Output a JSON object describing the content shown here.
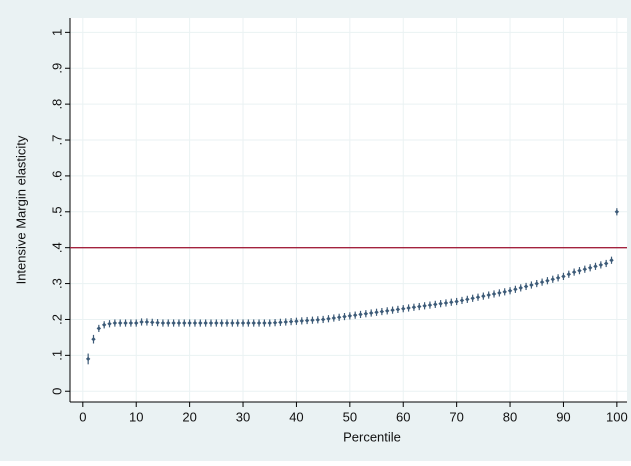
{
  "chart_data": {
    "type": "errorbar",
    "xlabel": "Percentile",
    "ylabel": "Intensive Margin elasticity",
    "x": [
      1,
      2,
      3,
      4,
      5,
      6,
      7,
      8,
      9,
      10,
      11,
      12,
      13,
      14,
      15,
      16,
      17,
      18,
      19,
      20,
      21,
      22,
      23,
      24,
      25,
      26,
      27,
      28,
      29,
      30,
      31,
      32,
      33,
      34,
      35,
      36,
      37,
      38,
      39,
      40,
      41,
      42,
      43,
      44,
      45,
      46,
      47,
      48,
      49,
      50,
      51,
      52,
      53,
      54,
      55,
      56,
      57,
      58,
      59,
      60,
      61,
      62,
      63,
      64,
      65,
      66,
      67,
      68,
      69,
      70,
      71,
      72,
      73,
      74,
      75,
      76,
      77,
      78,
      79,
      80,
      81,
      82,
      83,
      84,
      85,
      86,
      87,
      88,
      89,
      90,
      91,
      92,
      93,
      94,
      95,
      96,
      97,
      98,
      99,
      100
    ],
    "values": [
      0.09,
      0.145,
      0.175,
      0.185,
      0.188,
      0.19,
      0.19,
      0.19,
      0.19,
      0.19,
      0.193,
      0.193,
      0.192,
      0.191,
      0.19,
      0.19,
      0.19,
      0.19,
      0.19,
      0.19,
      0.19,
      0.19,
      0.19,
      0.19,
      0.19,
      0.19,
      0.19,
      0.19,
      0.19,
      0.19,
      0.19,
      0.19,
      0.19,
      0.19,
      0.19,
      0.191,
      0.192,
      0.193,
      0.194,
      0.195,
      0.196,
      0.197,
      0.198,
      0.199,
      0.2,
      0.202,
      0.204,
      0.206,
      0.208,
      0.21,
      0.212,
      0.214,
      0.216,
      0.218,
      0.22,
      0.222,
      0.224,
      0.226,
      0.228,
      0.23,
      0.232,
      0.234,
      0.236,
      0.238,
      0.24,
      0.242,
      0.244,
      0.246,
      0.248,
      0.25,
      0.253,
      0.256,
      0.259,
      0.262,
      0.265,
      0.268,
      0.271,
      0.274,
      0.277,
      0.28,
      0.284,
      0.288,
      0.292,
      0.296,
      0.3,
      0.304,
      0.308,
      0.312,
      0.316,
      0.32,
      0.326,
      0.332,
      0.336,
      0.34,
      0.344,
      0.348,
      0.352,
      0.356,
      0.365,
      0.5
    ],
    "errors": [
      0.015,
      0.012,
      0.01,
      0.01,
      0.01,
      0.01,
      0.01,
      0.01,
      0.01,
      0.01,
      0.01,
      0.01,
      0.01,
      0.01,
      0.01,
      0.01,
      0.01,
      0.01,
      0.01,
      0.01,
      0.01,
      0.01,
      0.01,
      0.01,
      0.01,
      0.01,
      0.01,
      0.01,
      0.01,
      0.01,
      0.01,
      0.01,
      0.01,
      0.01,
      0.01,
      0.01,
      0.01,
      0.01,
      0.01,
      0.01,
      0.01,
      0.01,
      0.01,
      0.01,
      0.01,
      0.01,
      0.01,
      0.01,
      0.01,
      0.01,
      0.01,
      0.01,
      0.01,
      0.01,
      0.01,
      0.01,
      0.01,
      0.01,
      0.01,
      0.01,
      0.01,
      0.01,
      0.01,
      0.01,
      0.01,
      0.01,
      0.01,
      0.01,
      0.01,
      0.01,
      0.01,
      0.01,
      0.01,
      0.01,
      0.01,
      0.01,
      0.01,
      0.01,
      0.01,
      0.01,
      0.01,
      0.01,
      0.01,
      0.01,
      0.01,
      0.01,
      0.01,
      0.01,
      0.01,
      0.01,
      0.01,
      0.01,
      0.01,
      0.01,
      0.01,
      0.01,
      0.01,
      0.01,
      0.01,
      0.01
    ],
    "color": "#3d5b78",
    "hline": 0.4,
    "hline_color": "#a3223e",
    "xlim": [
      -2.4,
      101.9
    ],
    "ylim": [
      -0.03,
      1.04
    ],
    "xticks": [
      0,
      10,
      20,
      30,
      40,
      50,
      60,
      70,
      80,
      90,
      100
    ],
    "yticks": [
      0,
      {
        "value": 0.1,
        "label": ".1"
      },
      {
        "value": 0.2,
        "label": ".2"
      },
      {
        "value": 0.3,
        "label": ".3"
      },
      {
        "value": 0.4,
        "label": ".4"
      },
      {
        "value": 0.5,
        "label": ".5"
      },
      {
        "value": 0.6,
        "label": ".6"
      },
      {
        "value": 0.7,
        "label": ".7"
      },
      {
        "value": 0.8,
        "label": ".8"
      },
      {
        "value": 0.9,
        "label": ".9"
      },
      1
    ],
    "grid": true
  }
}
